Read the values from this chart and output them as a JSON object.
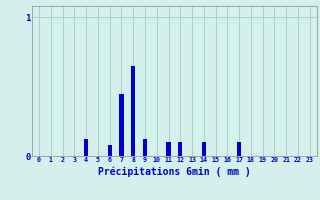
{
  "categories": [
    0,
    1,
    2,
    3,
    4,
    5,
    6,
    7,
    8,
    9,
    10,
    11,
    12,
    13,
    14,
    15,
    16,
    17,
    18,
    19,
    20,
    21,
    22,
    23
  ],
  "values": [
    0,
    0,
    0,
    0,
    0.12,
    0,
    0.08,
    0.45,
    0.65,
    0.12,
    0,
    0.1,
    0.1,
    0,
    0.1,
    0,
    0,
    0.1,
    0,
    0,
    0,
    0,
    0,
    0
  ],
  "bar_color": "#0000cc",
  "bg_color": "#d4f0ec",
  "grid_color": "#aacfcb",
  "xlabel": "Précipitations 6min ( mm )",
  "xlabel_color": "#0000cc",
  "ytick_labels": [
    "0",
    "1"
  ],
  "ytick_values": [
    0,
    1
  ],
  "ylim": [
    0,
    1.08
  ],
  "tick_color": "#0000cc",
  "axis_color": "#999999",
  "bar_width": 0.35
}
